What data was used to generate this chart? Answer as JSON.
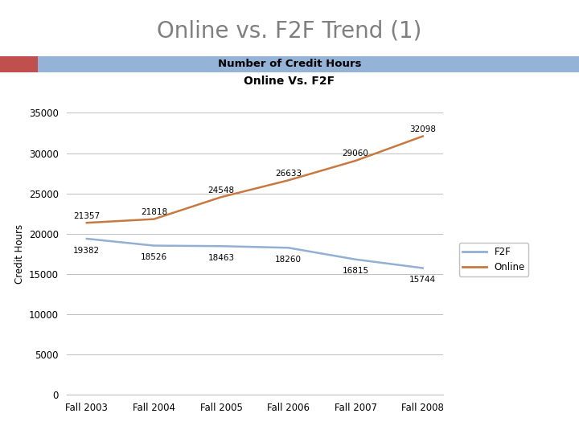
{
  "title_main": "Online vs. F2F Trend (1)",
  "chart_title_line1": "Number of Credit Hours",
  "chart_title_line2": "Online Vs. F2F",
  "categories": [
    "Fall 2003",
    "Fall 2004",
    "Fall 2005",
    "Fall 2006",
    "Fall 2007",
    "Fall 2008"
  ],
  "f2f_values": [
    19382,
    18526,
    18463,
    18260,
    16815,
    15744
  ],
  "online_values": [
    21357,
    21818,
    24548,
    26633,
    29060,
    32098
  ],
  "f2f_color": "#92afd4",
  "online_color": "#c87941",
  "ylabel": "Credit Hours",
  "ylim": [
    0,
    35000
  ],
  "yticks": [
    0,
    5000,
    10000,
    15000,
    20000,
    25000,
    30000,
    35000
  ],
  "header_bg_color": "#95b3d7",
  "header_left_color": "#c0504d",
  "title_color": "#7f7f7f",
  "background_color": "#ffffff",
  "chart_area_color": "#ffffff",
  "grid_color": "#bfbfbf"
}
